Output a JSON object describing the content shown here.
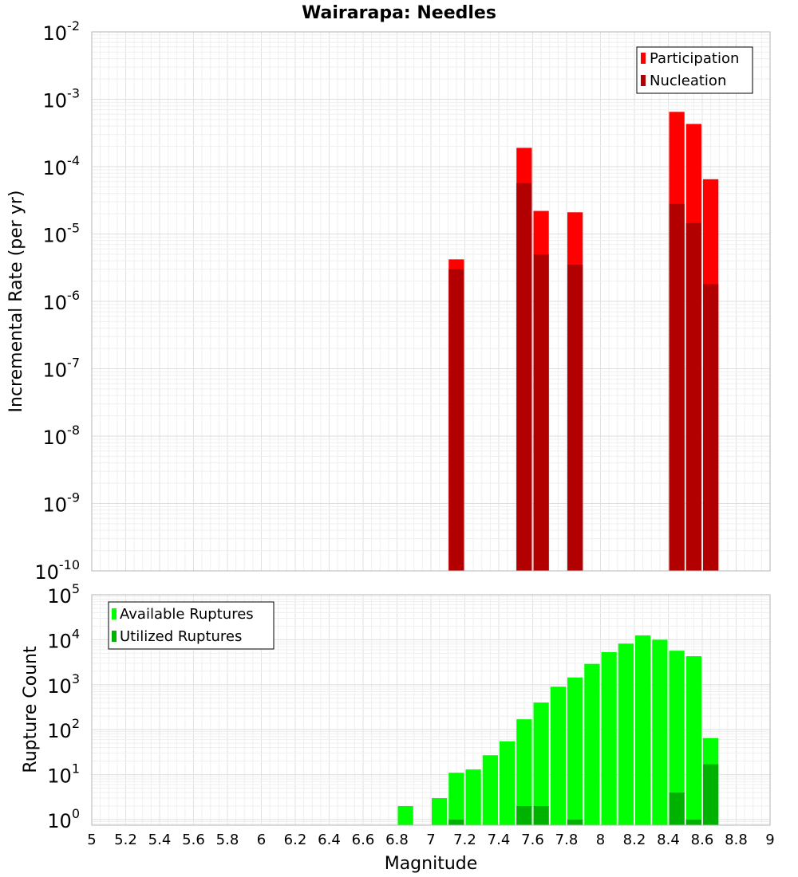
{
  "chart_data": [
    {
      "type": "bar",
      "title": "Wairarapa: Needles",
      "xlabel": "",
      "ylabel": "Incremental Rate (per yr)",
      "xlim": [
        5,
        9
      ],
      "ylim": [
        1e-10,
        0.01
      ],
      "yscale": "log",
      "grid": true,
      "legend_position": "top-right",
      "y_tick_labels": [
        {
          "base": "10",
          "exp": "-10"
        },
        {
          "base": "10",
          "exp": "-9"
        },
        {
          "base": "10",
          "exp": "-8"
        },
        {
          "base": "10",
          "exp": "-7"
        },
        {
          "base": "10",
          "exp": "-6"
        },
        {
          "base": "10",
          "exp": "-5"
        },
        {
          "base": "10",
          "exp": "-4"
        },
        {
          "base": "10",
          "exp": "-3"
        },
        {
          "base": "10",
          "exp": "-2"
        }
      ],
      "series": [
        {
          "name": "Participation",
          "color": "#ff0000",
          "x": [
            7.15,
            7.55,
            7.65,
            7.85,
            8.45,
            8.55,
            8.65
          ],
          "values": [
            4.2e-06,
            0.00019,
            2.2e-05,
            2.1e-05,
            0.00065,
            0.00043,
            6.5e-05
          ]
        },
        {
          "name": "Nucleation",
          "color": "#b20000",
          "x": [
            7.15,
            7.55,
            7.65,
            7.85,
            8.45,
            8.55,
            8.65
          ],
          "values": [
            3e-06,
            5.7e-05,
            5e-06,
            3.5e-06,
            2.8e-05,
            1.45e-05,
            1.8e-06
          ]
        }
      ]
    },
    {
      "type": "bar",
      "title": "",
      "xlabel": "Magnitude",
      "ylabel": "Rupture Count",
      "xlim": [
        5,
        9
      ],
      "ylim": [
        0.75,
        100000
      ],
      "yscale": "log",
      "grid": true,
      "legend_position": "top-left",
      "x_tick_labels": [
        "5",
        "5.2",
        "5.4",
        "5.6",
        "5.8",
        "6",
        "6.2",
        "6.4",
        "6.6",
        "6.8",
        "7",
        "7.2",
        "7.4",
        "7.6",
        "7.8",
        "8",
        "8.2",
        "8.4",
        "8.6",
        "8.8",
        "9"
      ],
      "y_tick_labels": [
        {
          "base": "10",
          "exp": "0"
        },
        {
          "base": "10",
          "exp": "1"
        },
        {
          "base": "10",
          "exp": "2"
        },
        {
          "base": "10",
          "exp": "3"
        },
        {
          "base": "10",
          "exp": "4"
        },
        {
          "base": "10",
          "exp": "5"
        }
      ],
      "series": [
        {
          "name": "Available Ruptures",
          "color": "#00ff00",
          "x": [
            6.85,
            7.05,
            7.15,
            7.25,
            7.35,
            7.45,
            7.55,
            7.65,
            7.75,
            7.85,
            7.95,
            8.05,
            8.15,
            8.25,
            8.35,
            8.45,
            8.55,
            8.65
          ],
          "values": [
            2,
            3,
            11,
            13,
            27,
            55,
            170,
            400,
            900,
            1450,
            2900,
            5300,
            8200,
            12500,
            10000,
            5700,
            4300,
            65
          ]
        },
        {
          "name": "Utilized Ruptures",
          "color": "#00b200",
          "x": [
            7.15,
            7.55,
            7.65,
            7.85,
            8.45,
            8.55,
            8.65
          ],
          "values": [
            1,
            2,
            2,
            1,
            4,
            1,
            17
          ]
        }
      ]
    }
  ]
}
